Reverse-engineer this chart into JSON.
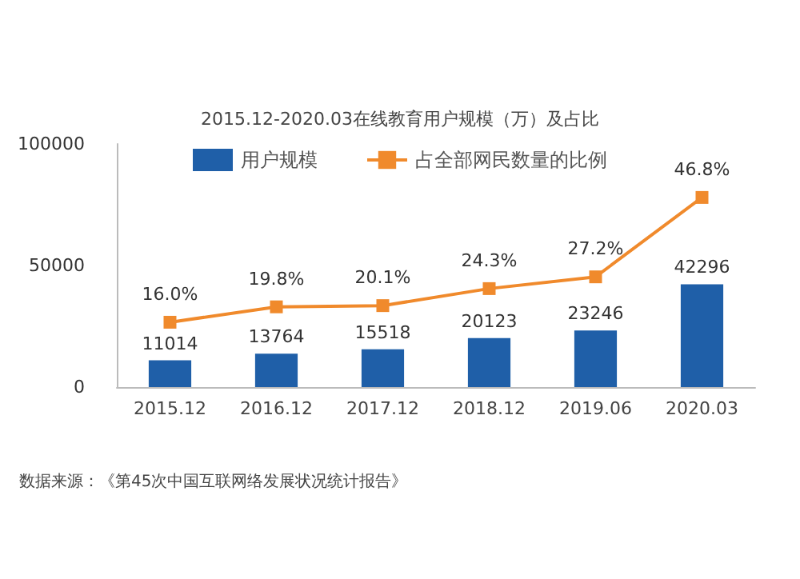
{
  "chart_data": {
    "type": "bar",
    "title": "2015.12-2020.03在线教育用户规模（万）及占比",
    "categories": [
      "2015.12",
      "2016.12",
      "2017.12",
      "2018.12",
      "2019.06",
      "2020.03"
    ],
    "series": [
      {
        "name": "用户规模",
        "color": "#1f5fa8",
        "values": [
          11014,
          13764,
          15518,
          20123,
          23246,
          42296
        ]
      },
      {
        "name": "占全部网民数量的比例",
        "type": "line",
        "axis": "y2",
        "color": "#f08a2c",
        "marker": "square",
        "values": [
          16.0,
          19.8,
          20.1,
          24.3,
          27.2,
          46.8
        ],
        "value_labels": [
          "16.0%",
          "19.8%",
          "20.1%",
          "24.3%",
          "27.2%",
          "46.8%"
        ]
      }
    ],
    "data_labels": true,
    "ylim": [
      0,
      100000
    ],
    "yticks": [
      0,
      50000,
      100000
    ],
    "y2lim": [
      0,
      60
    ],
    "grid": false,
    "legend": "top",
    "annotations": [
      "数据来源：《第45次中国互联网络发展状况统计报告》"
    ]
  }
}
